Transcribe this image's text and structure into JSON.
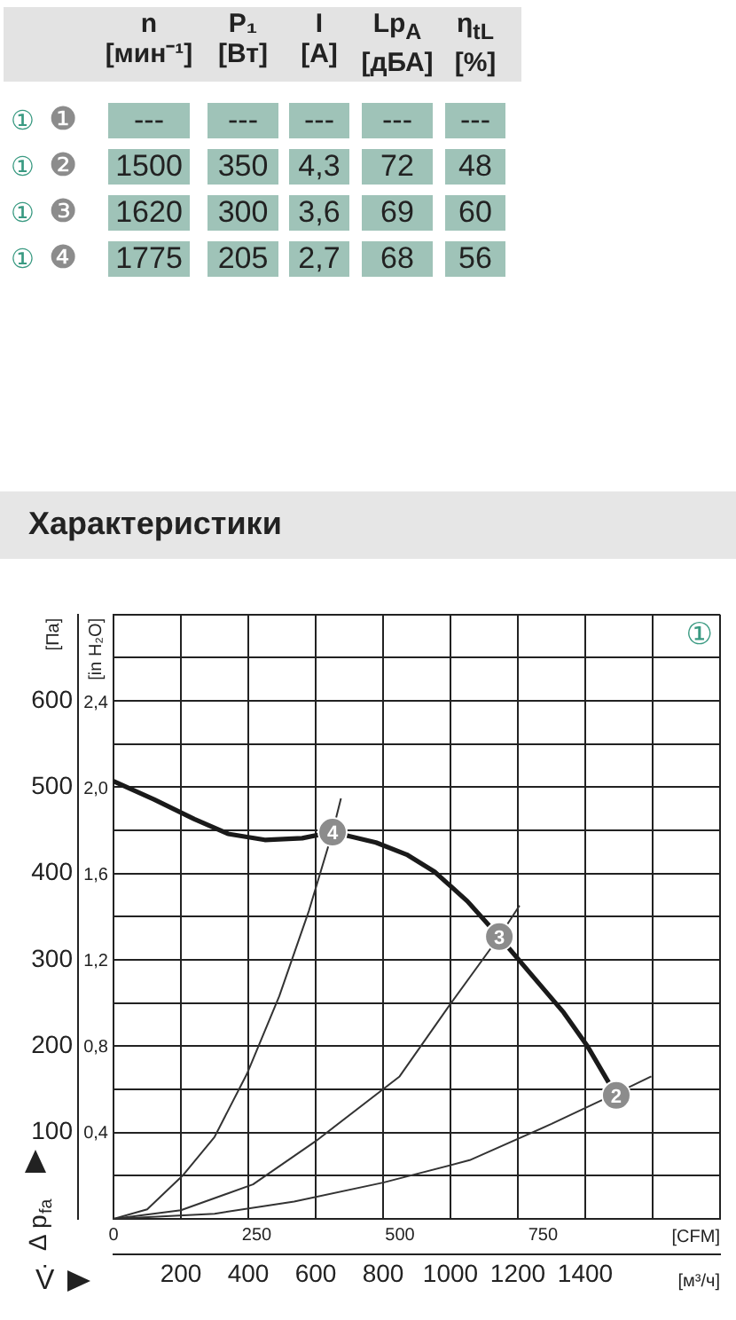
{
  "chart_data": [
    {
      "type": "other",
      "categories": [
        "n\n[мин⁻¹]",
        "P₁\n[Вт]",
        "I\n[A]",
        "Lp$_{A}$\n[дБА]",
        "η$_{tL}$\n[%]"
      ],
      "y_categories": [
        "① ❶",
        "① ❷",
        "① ❸",
        "① ❹"
      ],
      "cell_labels": [
        [
          "---",
          "---",
          "---",
          "---",
          "---"
        ],
        [
          "1500",
          "350",
          "4,3",
          "72",
          "48"
        ],
        [
          "1620",
          "300",
          "3,6",
          "69",
          "60"
        ],
        [
          "1775",
          "205",
          "2,7",
          "68",
          "56"
        ]
      ]
    },
    {
      "type": "line",
      "title": "Характеристики",
      "xlabel": "V̇",
      "x2label": "[CFM]",
      "ylabel": "Δ p$_{fa}$",
      "y2label": "[in H₂O]",
      "annotations": [
        "[Па]",
        "[м³/ч]",
        "①",
        {
          "text": "2",
          "x": 1492,
          "y": 143
        },
        {
          "text": "3",
          "x": 1145,
          "y": 327
        },
        {
          "text": "4",
          "x": 650,
          "y": 448
        }
      ],
      "xlim": [
        0,
        1800
      ],
      "xticks": [
        {
          "value": 0,
          "label": null
        },
        200,
        400,
        600,
        800,
        1000,
        1200,
        1400,
        {
          "value": 1600,
          "label": null
        },
        {
          "value": 1800,
          "label": null
        }
      ],
      "x2lim": [
        0,
        1059
      ],
      "x2ticks": [
        0,
        250,
        500,
        750
      ],
      "ylim": [
        0,
        700
      ],
      "yticks": [
        {
          "value": 0,
          "label": null
        },
        {
          "value": 50,
          "label": null
        },
        100,
        {
          "value": 150,
          "label": null
        },
        200,
        {
          "value": 250,
          "label": null
        },
        300,
        {
          "value": 350,
          "label": null
        },
        400,
        {
          "value": 450,
          "label": null
        },
        500,
        {
          "value": 550,
          "label": null
        },
        600,
        {
          "value": 650,
          "label": null
        },
        {
          "value": 700,
          "label": null
        }
      ],
      "y2lim": [
        0,
        2.81
      ],
      "y2ticks": [
        {
          "value": 0.4,
          "label": "0,4"
        },
        {
          "value": 0.8,
          "label": "0,8"
        },
        {
          "value": 1.2,
          "label": "1,2"
        },
        {
          "value": 1.6,
          "label": "1,6"
        },
        {
          "value": 2.0,
          "label": "2,0"
        },
        {
          "value": 2.4,
          "label": "2,4"
        }
      ],
      "grid": true,
      "legend": false,
      "series": [
        {
          "type": "line",
          "color": "#1a1a1a",
          "x": [
            0,
            120,
            240,
            340,
            449,
            560,
            649,
            779,
            870,
            953,
            1050,
            1144,
            1240,
            1336,
            1405,
            1492
          ],
          "values": [
            507,
            486,
            463,
            446,
            439,
            441,
            448,
            436,
            422,
            402,
            368,
            327,
            283,
            239,
            201,
            143
          ]
        },
        {
          "type": "line",
          "color": "#333333",
          "x": [
            0,
            100,
            205,
            300,
            396,
            492,
            580,
            650,
            675
          ],
          "values": [
            0,
            11,
            50,
            95,
            168,
            258,
            357,
            448,
            487
          ]
        },
        {
          "type": "line",
          "color": "#333333",
          "x": [
            0,
            200,
            414,
            600,
            849,
            1000,
            1145,
            1205
          ],
          "values": [
            0,
            10,
            40,
            90,
            165,
            249,
            327,
            363
          ]
        },
        {
          "type": "line",
          "color": "#333333",
          "x": [
            0,
            300,
            536,
            800,
            1057,
            1300,
            1490,
            1596
          ],
          "values": [
            0,
            6,
            20,
            42,
            68,
            110,
            145,
            165
          ]
        },
        {
          "type": "scatter",
          "color": "#8c8c8c",
          "marker": "circle",
          "x": [
            1492,
            1145,
            650
          ],
          "values": [
            143,
            327,
            448
          ]
        }
      ]
    }
  ]
}
